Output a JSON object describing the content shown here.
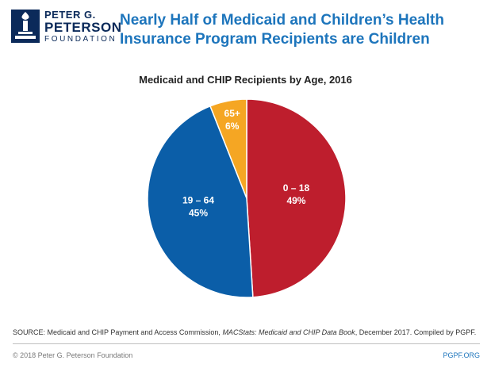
{
  "logo": {
    "line1": "PETER G.",
    "line2": "PETERSON",
    "line3": "FOUNDATION"
  },
  "title": "Nearly Half of Medicaid and Children’s Health Insurance Program Recipients are Children",
  "chart_data": {
    "type": "pie",
    "title": "Medicaid and CHIP Recipients by Age, 2016",
    "slices": [
      {
        "label": "0 – 18",
        "value": 49,
        "value_label": "49%",
        "color": "#be1e2d"
      },
      {
        "label": "19 – 64",
        "value": 45,
        "value_label": "45%",
        "color": "#0b5ea8"
      },
      {
        "label": "65+",
        "value": 6,
        "value_label": "6%",
        "color": "#f5a623"
      }
    ]
  },
  "footer": {
    "source_prefix": "SOURCE: Medicaid and CHIP Payment and Access Commission, ",
    "source_italic": "MACStats: Medicaid and CHIP Data Book",
    "source_suffix": ", December 2017. Compiled by PGPF.",
    "copyright": "© 2018 Peter G. Peterson Foundation",
    "site": "PGPF.ORG"
  }
}
